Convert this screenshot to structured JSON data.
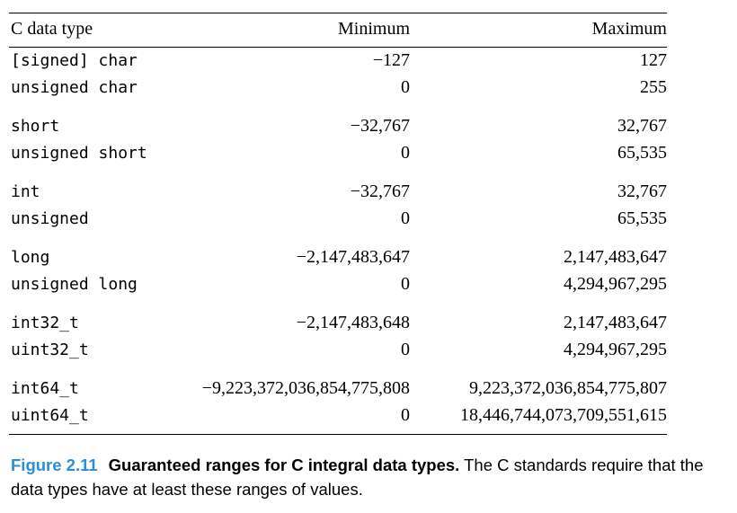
{
  "table": {
    "headers": [
      "C data type",
      "Minimum",
      "Maximum"
    ],
    "groups": [
      [
        [
          "[signed] char",
          "−127",
          "127"
        ],
        [
          "unsigned char",
          "0",
          "255"
        ]
      ],
      [
        [
          "short",
          "−32,767",
          "32,767"
        ],
        [
          "unsigned short",
          "0",
          "65,535"
        ]
      ],
      [
        [
          "int",
          "−32,767",
          "32,767"
        ],
        [
          "unsigned",
          "0",
          "65,535"
        ]
      ],
      [
        [
          "long",
          "−2,147,483,647",
          "2,147,483,647"
        ],
        [
          "unsigned long",
          "0",
          "4,294,967,295"
        ]
      ],
      [
        [
          "int32_t",
          "−2,147,483,648",
          "2,147,483,647"
        ],
        [
          "uint32_t",
          "0",
          "4,294,967,295"
        ]
      ],
      [
        [
          "int64_t",
          "−9,223,372,036,854,775,808",
          "9,223,372,036,854,775,807"
        ],
        [
          "uint64_t",
          "0",
          "18,446,744,073,709,551,615"
        ]
      ]
    ]
  },
  "caption": {
    "figure_label": "Figure 2.11",
    "title": "Guaranteed ranges for C integral data types.",
    "text": " The C standards require that the data types have at least these ranges of values."
  }
}
